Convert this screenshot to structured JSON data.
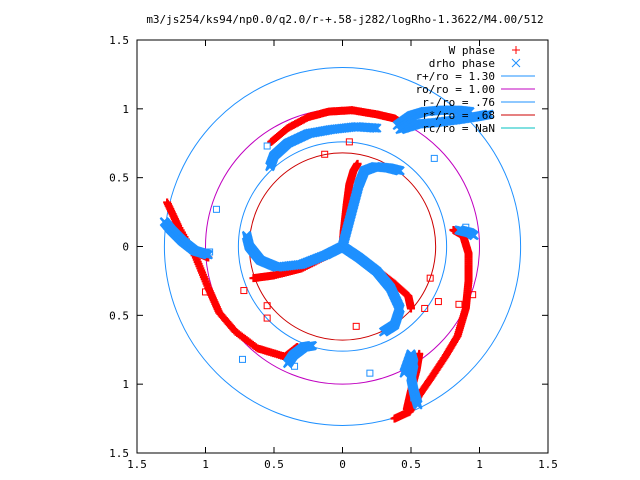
{
  "chart_data": {
    "type": "scatter",
    "title": "m3/js254/ks94/np0.0/q2.0/r-+.58-j282/logRho-1.3622/M4.00/512",
    "xlabel": "",
    "ylabel": "",
    "xlim": [
      -1.5,
      1.5
    ],
    "ylim": [
      -1.5,
      1.5
    ],
    "x_ticks": [
      -1.5,
      -1,
      -0.5,
      0,
      0.5,
      1,
      1.5
    ],
    "x_tick_labels": [
      "1.5",
      "1",
      "0.5",
      "0",
      "0.5",
      "1",
      "1.5"
    ],
    "y_ticks": [
      1.5,
      1,
      0.5,
      0,
      -0.5,
      -1,
      -1.5
    ],
    "y_tick_labels": [
      "1.5",
      "1",
      "0.5",
      "0",
      "0.5",
      "1",
      "1.5"
    ],
    "grid": false,
    "legend_position": "top-right",
    "legend": [
      {
        "label": "W phase",
        "marker": "plus",
        "color": "#ff0000"
      },
      {
        "label": "drho phase",
        "marker": "cross",
        "color": "#1e90ff"
      },
      {
        "label": "r+/ro = 1.30",
        "marker": "line",
        "color": "#1e90ff"
      },
      {
        "label": "ro/ro = 1.00",
        "marker": "line",
        "color": "#c000c0"
      },
      {
        "label": "r-/ro = .76",
        "marker": "line",
        "color": "#1e90ff"
      },
      {
        "label": "r*/ro = .68",
        "marker": "line",
        "color": "#cc0000"
      },
      {
        "label": "rc/ro = NaN",
        "marker": "line",
        "color": "#00c0c0"
      }
    ],
    "circles": [
      {
        "name": "r+/ro = 1.30",
        "r": 1.3,
        "color": "#1e90ff"
      },
      {
        "name": "ro/ro = 1.00",
        "r": 1.0,
        "color": "#c000c0"
      },
      {
        "name": "r-/ro = .76",
        "r": 0.76,
        "color": "#1e90ff"
      },
      {
        "name": "r*/ro = .68",
        "r": 0.68,
        "color": "#cc0000"
      }
    ],
    "series": [
      {
        "name": "W phase",
        "color": "#ff0000",
        "curves": [
          [
            [
              0,
              0
            ],
            [
              0.01,
              0.12
            ],
            [
              0.03,
              0.3
            ],
            [
              0.05,
              0.45
            ],
            [
              0.08,
              0.55
            ],
            [
              0.11,
              0.6
            ]
          ],
          [
            [
              0,
              0
            ],
            [
              -0.12,
              -0.07
            ],
            [
              -0.3,
              -0.16
            ],
            [
              -0.5,
              -0.21
            ],
            [
              -0.65,
              -0.23
            ]
          ],
          [
            [
              0,
              0
            ],
            [
              0.12,
              -0.08
            ],
            [
              0.25,
              -0.17
            ],
            [
              0.38,
              -0.27
            ],
            [
              0.48,
              -0.36
            ],
            [
              0.5,
              -0.45
            ]
          ],
          [
            [
              0.07,
              0.99
            ],
            [
              0.25,
              0.96
            ],
            [
              0.38,
              0.93
            ],
            [
              0.45,
              0.88
            ]
          ],
          [
            [
              0.07,
              0.99
            ],
            [
              -0.1,
              0.98
            ],
            [
              -0.25,
              0.94
            ],
            [
              -0.4,
              0.86
            ],
            [
              -0.52,
              0.76
            ]
          ],
          [
            [
              0.81,
              0.12
            ],
            [
              0.88,
              0.08
            ],
            [
              0.92,
              -0.05
            ],
            [
              0.92,
              -0.25
            ],
            [
              0.9,
              -0.45
            ],
            [
              0.84,
              -0.65
            ],
            [
              0.75,
              -0.8
            ],
            [
              0.65,
              -0.95
            ],
            [
              0.56,
              -1.08
            ],
            [
              0.49,
              -1.2
            ],
            [
              0.38,
              -1.25
            ]
          ],
          [
            [
              0.56,
              -0.78
            ],
            [
              0.54,
              -0.9
            ],
            [
              0.5,
              -1.05
            ],
            [
              0.47,
              -1.18
            ]
          ],
          [
            [
              -1.28,
              0.32
            ],
            [
              -1.2,
              0.15
            ],
            [
              -1.07,
              -0.08
            ],
            [
              -0.98,
              -0.3
            ],
            [
              -0.9,
              -0.48
            ],
            [
              -0.78,
              -0.62
            ],
            [
              -0.62,
              -0.74
            ],
            [
              -0.42,
              -0.8
            ],
            [
              -0.33,
              -0.73
            ]
          ],
          [
            [
              -1.25,
              0.15
            ],
            [
              -1.15,
              0.05
            ],
            [
              -1.05,
              -0.05
            ],
            [
              -0.98,
              -0.08
            ]
          ]
        ],
        "points": [
          [
            0.05,
            0.76
          ],
          [
            -0.13,
            0.67
          ],
          [
            0.64,
            -0.23
          ],
          [
            0.6,
            -0.45
          ],
          [
            -0.72,
            -0.32
          ],
          [
            -0.55,
            -0.43
          ],
          [
            0.7,
            -0.4
          ],
          [
            0.85,
            -0.42
          ],
          [
            0.95,
            -0.35
          ],
          [
            -1.0,
            -0.33
          ],
          [
            -0.55,
            -0.52
          ],
          [
            0.1,
            -0.58
          ]
        ]
      },
      {
        "name": "drho phase",
        "color": "#1e90ff",
        "curves": [
          [
            [
              0,
              0
            ],
            [
              0.04,
              0.15
            ],
            [
              0.08,
              0.3
            ],
            [
              0.12,
              0.45
            ],
            [
              0.16,
              0.55
            ],
            [
              0.24,
              0.58
            ],
            [
              0.34,
              0.57
            ],
            [
              0.42,
              0.55
            ]
          ],
          [
            [
              0,
              0
            ],
            [
              -0.12,
              -0.06
            ],
            [
              -0.3,
              -0.13
            ],
            [
              -0.48,
              -0.15
            ],
            [
              -0.6,
              -0.1
            ],
            [
              -0.68,
              0.0
            ],
            [
              -0.7,
              0.08
            ]
          ],
          [
            [
              0,
              0
            ],
            [
              0.12,
              -0.08
            ],
            [
              0.25,
              -0.18
            ],
            [
              0.35,
              -0.3
            ],
            [
              0.42,
              -0.45
            ],
            [
              0.38,
              -0.57
            ],
            [
              0.3,
              -0.62
            ]
          ],
          [
            [
              0.42,
              0.85
            ],
            [
              0.55,
              0.89
            ],
            [
              0.68,
              0.9
            ],
            [
              0.83,
              0.92
            ],
            [
              0.96,
              0.94
            ],
            [
              1.07,
              0.96
            ]
          ],
          [
            [
              0.4,
              0.88
            ],
            [
              0.5,
              0.95
            ],
            [
              0.6,
              0.98
            ],
            [
              0.72,
              0.99
            ],
            [
              0.84,
              0.99
            ],
            [
              0.93,
              0.98
            ]
          ],
          [
            [
              -0.53,
              0.58
            ],
            [
              -0.5,
              0.66
            ],
            [
              -0.4,
              0.75
            ],
            [
              -0.25,
              0.82
            ],
            [
              -0.08,
              0.85
            ],
            [
              0.1,
              0.87
            ],
            [
              0.25,
              0.86
            ]
          ],
          [
            [
              0.85,
              0.12
            ],
            [
              0.93,
              0.1
            ],
            [
              0.96,
              0.08
            ]
          ],
          [
            [
              0.55,
              -1.15
            ],
            [
              0.52,
              -1.05
            ],
            [
              0.5,
              -0.95
            ],
            [
              0.52,
              -0.85
            ],
            [
              0.5,
              -0.78
            ],
            [
              0.45,
              -0.92
            ]
          ],
          [
            [
              -1.3,
              0.18
            ],
            [
              -1.25,
              0.12
            ],
            [
              -1.17,
              0.04
            ],
            [
              -1.08,
              -0.03
            ],
            [
              -0.98,
              -0.06
            ]
          ],
          [
            [
              -0.4,
              -0.85
            ],
            [
              -0.36,
              -0.79
            ],
            [
              -0.28,
              -0.73
            ],
            [
              -0.22,
              -0.72
            ]
          ]
        ],
        "points": [
          [
            -0.55,
            0.73
          ],
          [
            0.67,
            0.64
          ],
          [
            -0.92,
            0.27
          ],
          [
            -0.97,
            -0.04
          ],
          [
            0.9,
            0.14
          ],
          [
            0.2,
            -0.92
          ],
          [
            0.52,
            -1.1
          ],
          [
            -0.73,
            -0.82
          ],
          [
            -0.35,
            -0.87
          ],
          [
            0.4,
            0.55
          ]
        ]
      }
    ]
  }
}
